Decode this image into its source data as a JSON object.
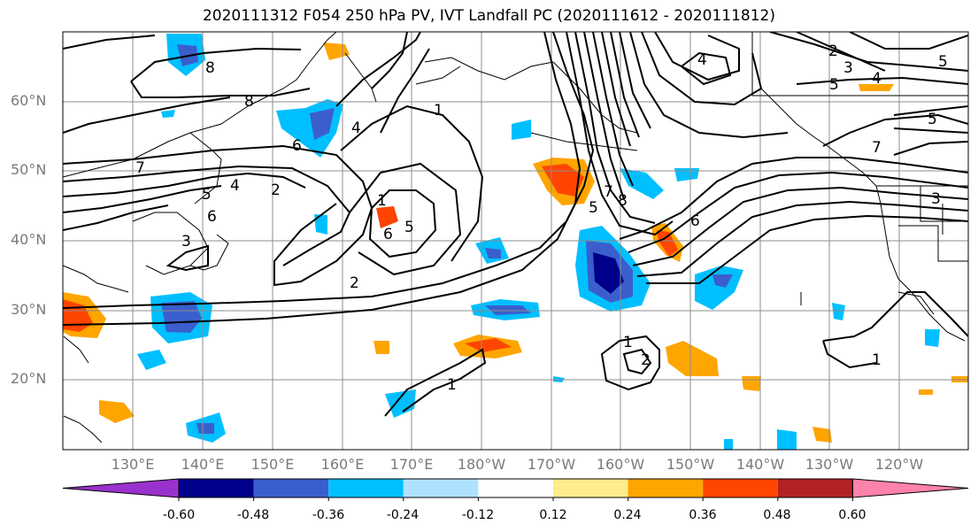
{
  "title": "2020111312 F054 250 hPa PV, IVT Landfall PC (2020111612 - 2020111812)",
  "lat_labels": [
    "60°N",
    "50°N",
    "40°N",
    "30°N",
    "20°N"
  ],
  "lon_labels": [
    "130°E",
    "140°E",
    "150°E",
    "160°E",
    "170°E",
    "180°W",
    "170°W",
    "160°W",
    "150°W",
    "140°W",
    "130°W",
    "120°W"
  ],
  "contour_labels": [
    "1",
    "2",
    "3",
    "4",
    "5",
    "6",
    "7",
    "8"
  ],
  "colorbar": {
    "ticks": [
      "-0.60",
      "-0.48",
      "-0.36",
      "-0.24",
      "-0.12",
      "0.12",
      "0.24",
      "0.36",
      "0.48",
      "0.60"
    ],
    "colors": [
      "#9932cc",
      "#00008b",
      "#3a5fcd",
      "#00bfff",
      "#b0e2ff",
      "#ffffff",
      "#ffec8b",
      "#ffa500",
      "#ff4500",
      "#b22222",
      "#ff82ab"
    ]
  }
}
